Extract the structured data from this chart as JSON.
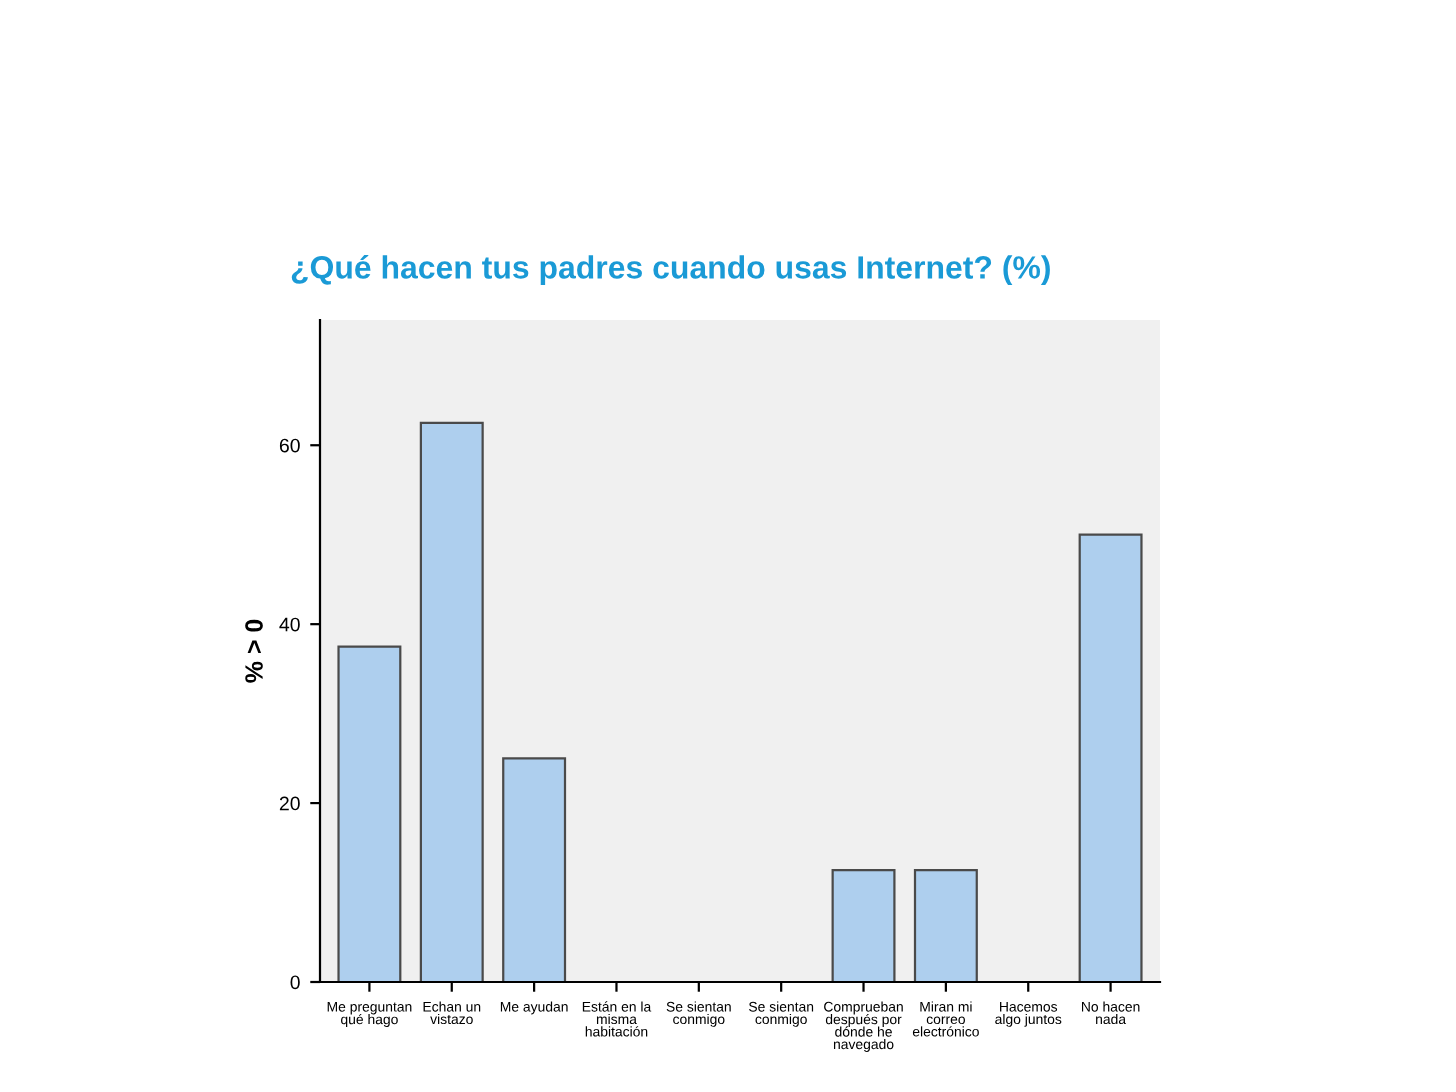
{
  "chart_data": {
    "type": "bar",
    "title": "¿Qué hacen tus padres cuando usas Internet? (%)",
    "ylabel": "% > 0",
    "categories": [
      "Me preguntan\nqué hago",
      "Echan un\nvistazo",
      "Me ayudan",
      "Están en la\nmisma\nhabitación",
      "Se sientan\nconmigo",
      "Se sientan\nconmigo",
      "Comprueban\ndespués por\ndónde he\nnavegado",
      "Miran mi\ncorreo\nelectrónico",
      "Hacemos\nalgo juntos",
      "No hacen\nnada"
    ],
    "values": [
      37.5,
      62.5,
      25,
      0,
      0,
      0,
      12.5,
      12.5,
      0,
      50
    ],
    "color": "#aecfee",
    "ylim": [
      0,
      74
    ],
    "yticks": [
      0,
      20,
      40,
      60
    ],
    "grid": false,
    "legend": false
  }
}
